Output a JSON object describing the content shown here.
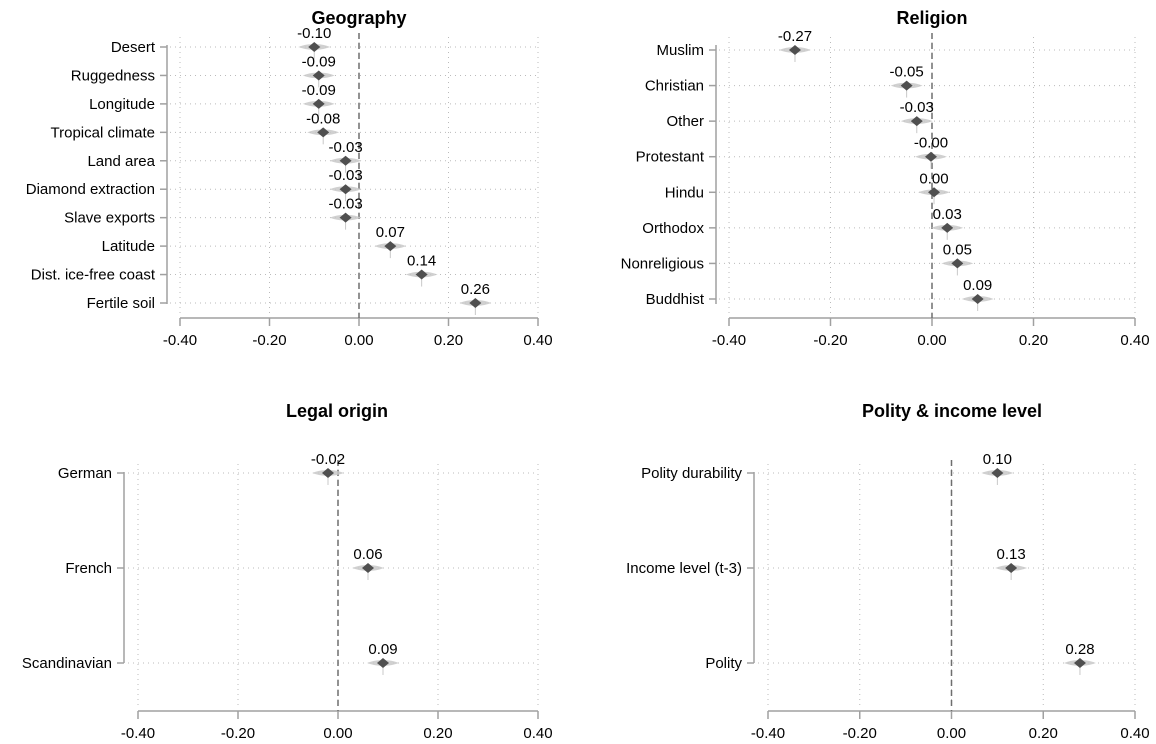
{
  "colors": {
    "marker": "#4f4f4f",
    "axis": "#a0a0a0",
    "zero_line": "#6e6e6e",
    "grid": "#bbbbbb"
  },
  "chart_data": [
    {
      "type": "scatter",
      "title": "Geography",
      "categories": [
        "Desert",
        "Ruggedness",
        "Longitude",
        "Tropical climate",
        "Land area",
        "Diamond extraction",
        "Slave exports",
        "Latitude",
        "Dist. ice-free coast",
        "Fertile soil"
      ],
      "values": [
        -0.1,
        -0.09,
        -0.09,
        -0.08,
        -0.03,
        -0.03,
        -0.03,
        0.07,
        0.14,
        0.26
      ],
      "value_labels": [
        "-0.10",
        "-0.09",
        "-0.09",
        "-0.08",
        "-0.03",
        "-0.03",
        "-0.03",
        "0.07",
        "0.14",
        "0.26"
      ],
      "xlim": [
        -0.4,
        0.4
      ],
      "xticks": [
        "-0.40",
        "-0.20",
        "0.00",
        "0.20",
        "0.40"
      ],
      "reference_line": 0,
      "grid": true
    },
    {
      "type": "scatter",
      "title": "Religion",
      "categories": [
        "Muslim",
        "Christian",
        "Other",
        "Protestant",
        "Hindu",
        "Orthodox",
        "Nonreligious",
        "Buddhist"
      ],
      "values": [
        -0.27,
        -0.05,
        -0.03,
        -0.002,
        0.004,
        0.03,
        0.05,
        0.09
      ],
      "value_labels": [
        "-0.27",
        "-0.05",
        "-0.03",
        "-0.00",
        "0.00",
        "0.03",
        "0.05",
        "0.09"
      ],
      "xlim": [
        -0.4,
        0.4
      ],
      "xticks": [
        "-0.40",
        "-0.20",
        "0.00",
        "0.20",
        "0.40"
      ],
      "reference_line": 0,
      "grid": true
    },
    {
      "type": "scatter",
      "title": "Legal origin",
      "categories": [
        "German",
        "French",
        "Scandinavian"
      ],
      "values": [
        -0.02,
        0.06,
        0.09
      ],
      "value_labels": [
        "-0.02",
        "0.06",
        "0.09"
      ],
      "xlim": [
        -0.4,
        0.4
      ],
      "xticks": [
        "-0.40",
        "-0.20",
        "0.00",
        "0.20",
        "0.40"
      ],
      "reference_line": 0,
      "grid": true
    },
    {
      "type": "scatter",
      "title": "Polity & income level",
      "categories": [
        "Polity durability",
        "Income level (t-3)",
        "Polity"
      ],
      "values": [
        0.1,
        0.13,
        0.28
      ],
      "value_labels": [
        "0.10",
        "0.13",
        "0.28"
      ],
      "xlim": [
        -0.4,
        0.4
      ],
      "xticks": [
        "-0.40",
        "-0.20",
        "0.00",
        "0.20",
        "0.40"
      ],
      "reference_line": 0,
      "grid": true
    }
  ]
}
